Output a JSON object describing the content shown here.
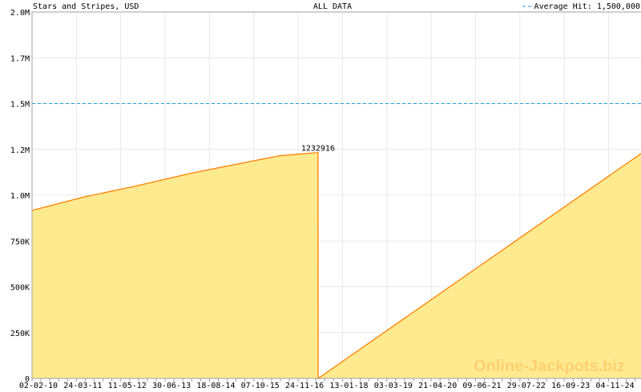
{
  "header": {
    "left": "Stars and Stripes, USD",
    "center": "ALL DATA",
    "legend": "Average Hit: 1,500,000"
  },
  "watermark": "Online-Jackpots.biz",
  "colors": {
    "fill": "#FFEA90",
    "line": "#FF8000",
    "average": "#1E9FD8",
    "grid": "#E8E8E8",
    "axis": "#A0A0A0",
    "label": "#CC0000",
    "watermark": "#FFD070"
  },
  "chart_data": {
    "type": "area",
    "title": "Stars and Stripes, USD",
    "subtitle": "ALL DATA",
    "ylim": [
      0,
      2000000
    ],
    "y_ticks": [
      {
        "v": 0,
        "label": "0"
      },
      {
        "v": 250000,
        "label": "250K"
      },
      {
        "v": 500000,
        "label": "500K"
      },
      {
        "v": 750000,
        "label": "750K"
      },
      {
        "v": 1000000,
        "label": "1.0M"
      },
      {
        "v": 1250000,
        "label": "1.2M"
      },
      {
        "v": 1500000,
        "label": "1.5M"
      },
      {
        "v": 1750000,
        "label": "1.7M"
      },
      {
        "v": 2000000,
        "label": "2.0M"
      }
    ],
    "x_ticks": [
      "02-02-10",
      "24-03-11",
      "11-05-12",
      "30-06-13",
      "18-08-14",
      "07-10-15",
      "24-11-16",
      "13-01-18",
      "03-03-19",
      "21-04-20",
      "09-06-21",
      "29-07-22",
      "16-09-23",
      "04-11-24"
    ],
    "xlim": [
      "2010-02-02",
      "2025-09-05"
    ],
    "grid": true,
    "average_line": {
      "value": 1500000,
      "label": "Average Hit: 1,500,000"
    },
    "annotation": {
      "value": 1232916,
      "label": "1232916"
    },
    "points": [
      [
        "2010-02-02",
        917000
      ],
      [
        "2011-06-01",
        990000
      ],
      [
        "2012-10-01",
        1050000
      ],
      [
        "2014-03-01",
        1120000
      ],
      [
        "2015-08-01",
        1180000
      ],
      [
        "2016-06-01",
        1215000
      ],
      [
        "2017-05-30",
        1232916
      ],
      [
        "2017-05-31",
        0
      ],
      [
        "2025-09-05",
        1227000
      ]
    ]
  }
}
